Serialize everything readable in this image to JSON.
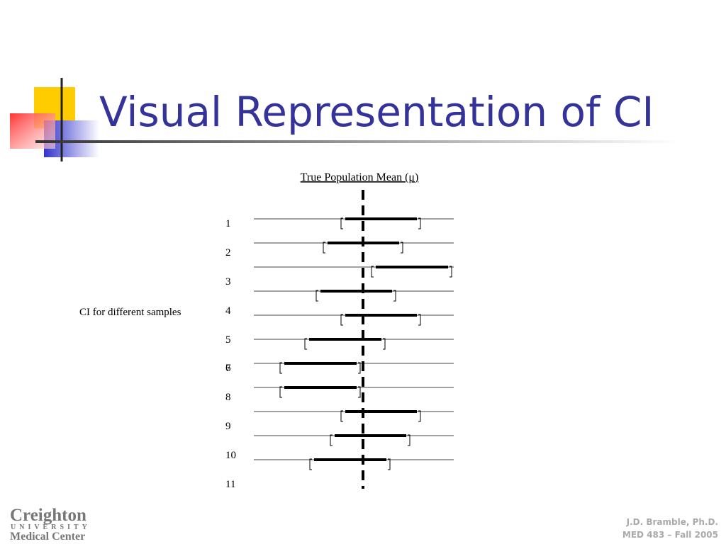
{
  "header": {
    "title": "Visual Representation of CI"
  },
  "diagram": {
    "mean_label": "True Population Mean (μ)",
    "side_label": "CI for different samples",
    "row_labels": [
      1,
      2,
      3,
      4,
      5,
      6,
      7,
      8,
      9,
      10,
      11
    ]
  },
  "footer": {
    "logo": {
      "line1": "Creighton",
      "line2": "UNIVERSITY",
      "line3": "Medical Center"
    },
    "author": "J.D. Bramble, Ph.D.",
    "course": "MED 483 – Fall 2005"
  }
}
